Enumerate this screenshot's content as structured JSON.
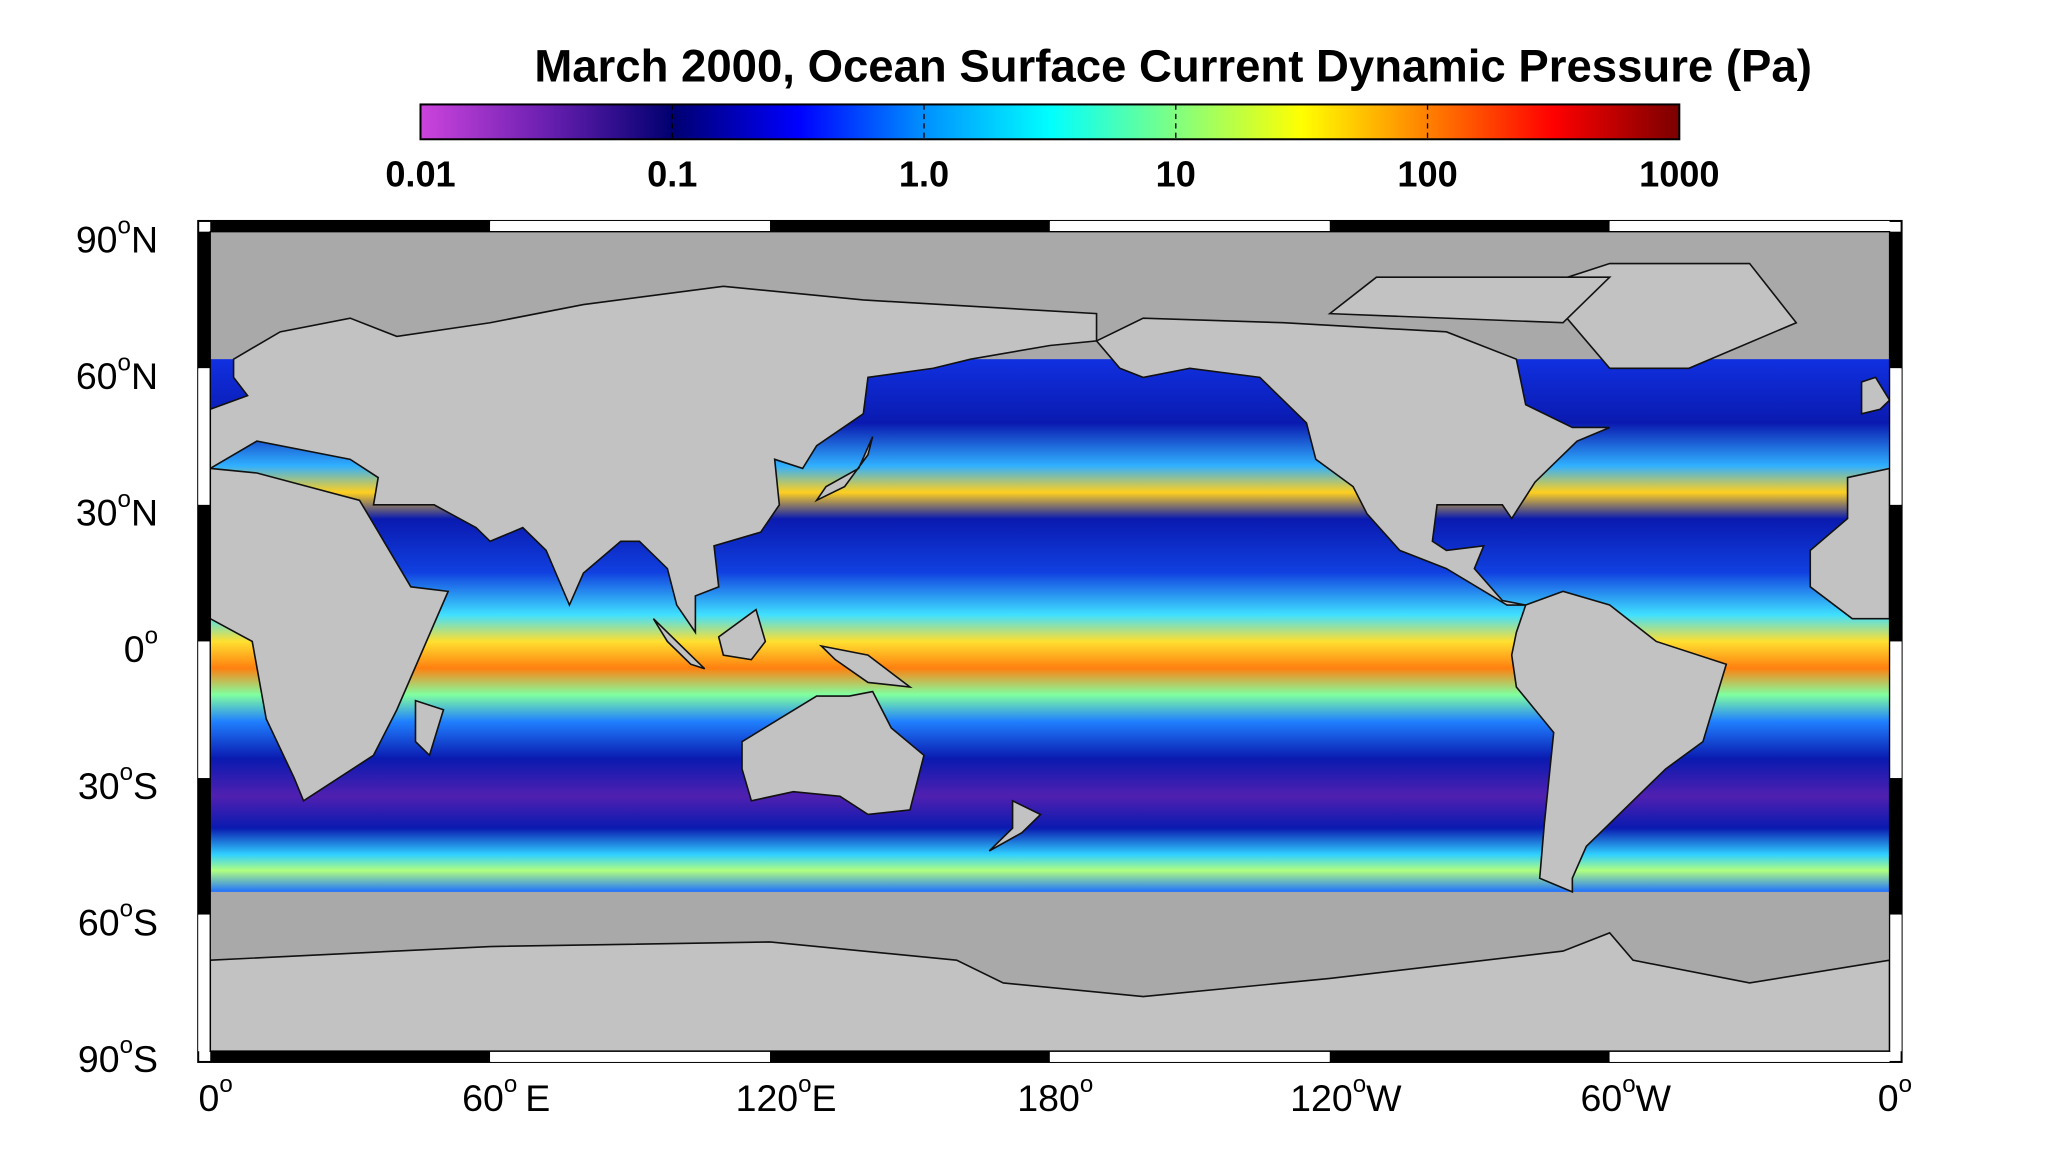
{
  "map": {
    "title": "March 2000, Ocean Surface Current Dynamic Pressure (Pa)",
    "colorbar": {
      "scale": "log",
      "lim": [
        0.01,
        1000
      ],
      "ticks": [
        0.01,
        0.1,
        {
          "value": 1,
          "label": "1.0"
        },
        10,
        100,
        1000
      ],
      "colors": [
        "#cc44dd",
        "#6a1fb0",
        "#000070",
        "#0000ff",
        "#0090ff",
        "#00ffff",
        "#80ff80",
        "#ffff00",
        "#ff8000",
        "#ff0000",
        "#7a0000"
      ]
    },
    "degree_symbol": "o",
    "lat_labels": [
      {
        "value": 90,
        "hemisphere": "N"
      },
      {
        "value": 60,
        "hemisphere": "N"
      },
      {
        "value": 30,
        "hemisphere": "N"
      },
      {
        "value": 0
      },
      {
        "value": 30,
        "hemisphere": "S"
      },
      {
        "value": 60,
        "hemisphere": "S"
      },
      {
        "value": 90,
        "hemisphere": "S"
      }
    ],
    "lon_labels": [
      {
        "value": 0
      },
      {
        "value": 60,
        "hemisphere": "E"
      },
      {
        "value": 120,
        "hemisphere": "E"
      },
      {
        "value": 180
      },
      {
        "value": 120,
        "hemisphere": "W"
      },
      {
        "value": 60,
        "hemisphere": "W"
      },
      {
        "value": 0
      }
    ]
  }
}
